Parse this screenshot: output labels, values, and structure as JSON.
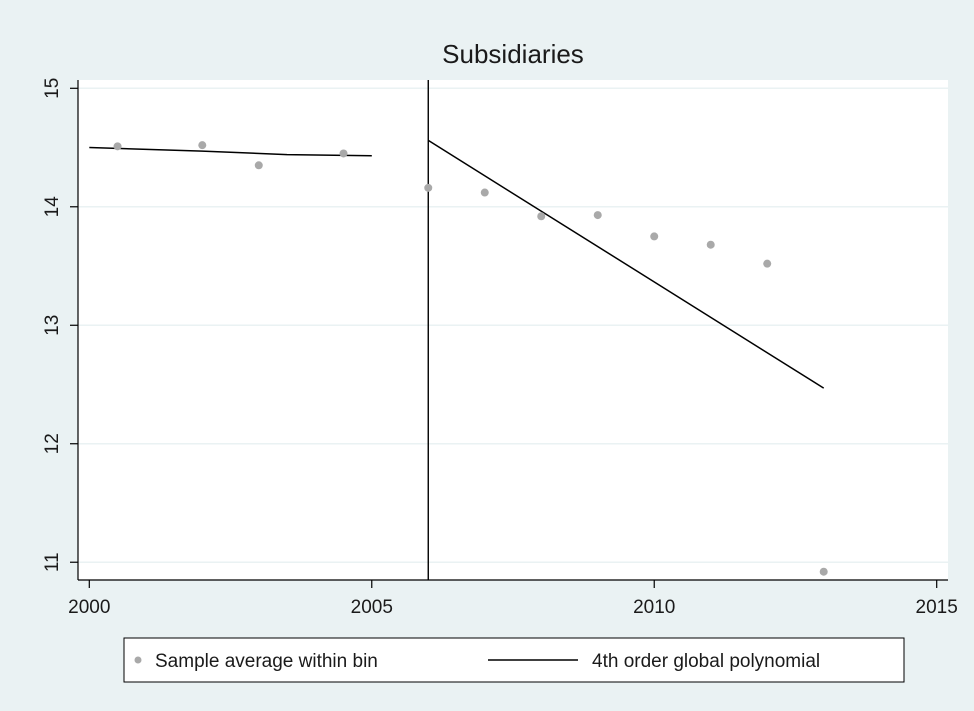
{
  "colors": {
    "background": "#eaf2f3",
    "plot_background": "#ffffff",
    "gridline": "#eaf2f3",
    "scatter": "#a9a9a9",
    "line": "#000000"
  },
  "chart_data": {
    "type": "scatter",
    "title": "Subsidiaries",
    "xlabel": "",
    "ylabel": "",
    "xlim": [
      1999.8,
      2015.2
    ],
    "ylim": [
      10.85,
      15.07
    ],
    "xticks": [
      2000,
      2005,
      2010,
      2015
    ],
    "yticks": [
      11,
      12,
      13,
      14,
      15
    ],
    "grid": true,
    "cutoff": 2006,
    "legend_position": "bottom",
    "series": [
      {
        "name": "Sample average within bin",
        "type": "scatter",
        "points": [
          {
            "x": 2000.5,
            "y": 14.51
          },
          {
            "x": 2002,
            "y": 14.52
          },
          {
            "x": 2003,
            "y": 14.35
          },
          {
            "x": 2004.5,
            "y": 14.45
          },
          {
            "x": 2006,
            "y": 14.16
          },
          {
            "x": 2007,
            "y": 14.12
          },
          {
            "x": 2008,
            "y": 13.92
          },
          {
            "x": 2009,
            "y": 13.93
          },
          {
            "x": 2010,
            "y": 13.75
          },
          {
            "x": 2011,
            "y": 13.68
          },
          {
            "x": 2012,
            "y": 13.52
          },
          {
            "x": 2013,
            "y": 10.92
          }
        ]
      },
      {
        "name": "4th order global polynomial",
        "type": "line",
        "segments": [
          [
            {
              "x": 2000,
              "y": 14.5
            },
            {
              "x": 2002,
              "y": 14.47
            },
            {
              "x": 2003.5,
              "y": 14.44
            },
            {
              "x": 2005,
              "y": 14.43
            }
          ],
          [
            {
              "x": 2006,
              "y": 14.56
            },
            {
              "x": 2013,
              "y": 12.47
            }
          ]
        ]
      }
    ]
  }
}
